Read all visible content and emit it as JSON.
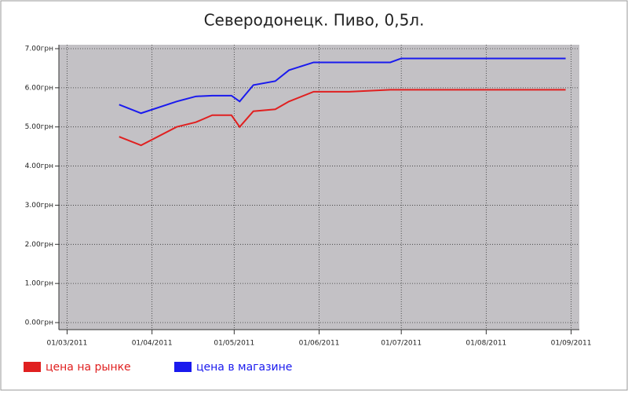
{
  "chart_data": {
    "type": "line",
    "title": "Северодонецк. Пиво, 0,5л.",
    "x": [
      "2011-03-20",
      "2011-03-28",
      "2011-04-10",
      "2011-04-17",
      "2011-04-23",
      "2011-04-30",
      "2011-05-03",
      "2011-05-08",
      "2011-05-16",
      "2011-05-21",
      "2011-05-30",
      "2011-06-12",
      "2011-06-27",
      "2011-07-01",
      "2011-08-30"
    ],
    "series": [
      {
        "name": "цена на рынке",
        "color": "#e02020",
        "values": [
          4.75,
          4.53,
          5.0,
          5.12,
          5.3,
          5.3,
          5.0,
          5.4,
          5.45,
          5.65,
          5.9,
          5.9,
          5.95,
          5.95,
          5.95
        ]
      },
      {
        "name": "цена в магазине",
        "color": "#1a1aee",
        "values": [
          5.57,
          5.35,
          5.65,
          5.78,
          5.8,
          5.8,
          5.65,
          6.07,
          6.17,
          6.45,
          6.65,
          6.65,
          6.65,
          6.75,
          6.75
        ]
      }
    ],
    "xlim": [
      "2011-02-26",
      "2011-09-04"
    ],
    "xticks": [
      {
        "value": "2011-03-01",
        "label": "01/03/2011"
      },
      {
        "value": "2011-04-01",
        "label": "01/04/2011"
      },
      {
        "value": "2011-05-01",
        "label": "01/05/2011"
      },
      {
        "value": "2011-06-01",
        "label": "01/06/2011"
      },
      {
        "value": "2011-07-01",
        "label": "01/07/2011"
      },
      {
        "value": "2011-08-01",
        "label": "01/08/2011"
      },
      {
        "value": "2011-09-01",
        "label": "01/09/2011"
      }
    ],
    "ylim": [
      -0.18,
      7.1
    ],
    "yticks": [
      {
        "value": 0,
        "label": "0.00грн"
      },
      {
        "value": 1,
        "label": "1.00грн"
      },
      {
        "value": 2,
        "label": "2.00грн"
      },
      {
        "value": 3,
        "label": "3.00грн"
      },
      {
        "value": 4,
        "label": "4.00грн"
      },
      {
        "value": 5,
        "label": "5.00грн"
      },
      {
        "value": 6,
        "label": "6.00грн"
      },
      {
        "value": 7,
        "label": "7.00грн"
      }
    ],
    "grid": true,
    "legend": "bottom"
  }
}
